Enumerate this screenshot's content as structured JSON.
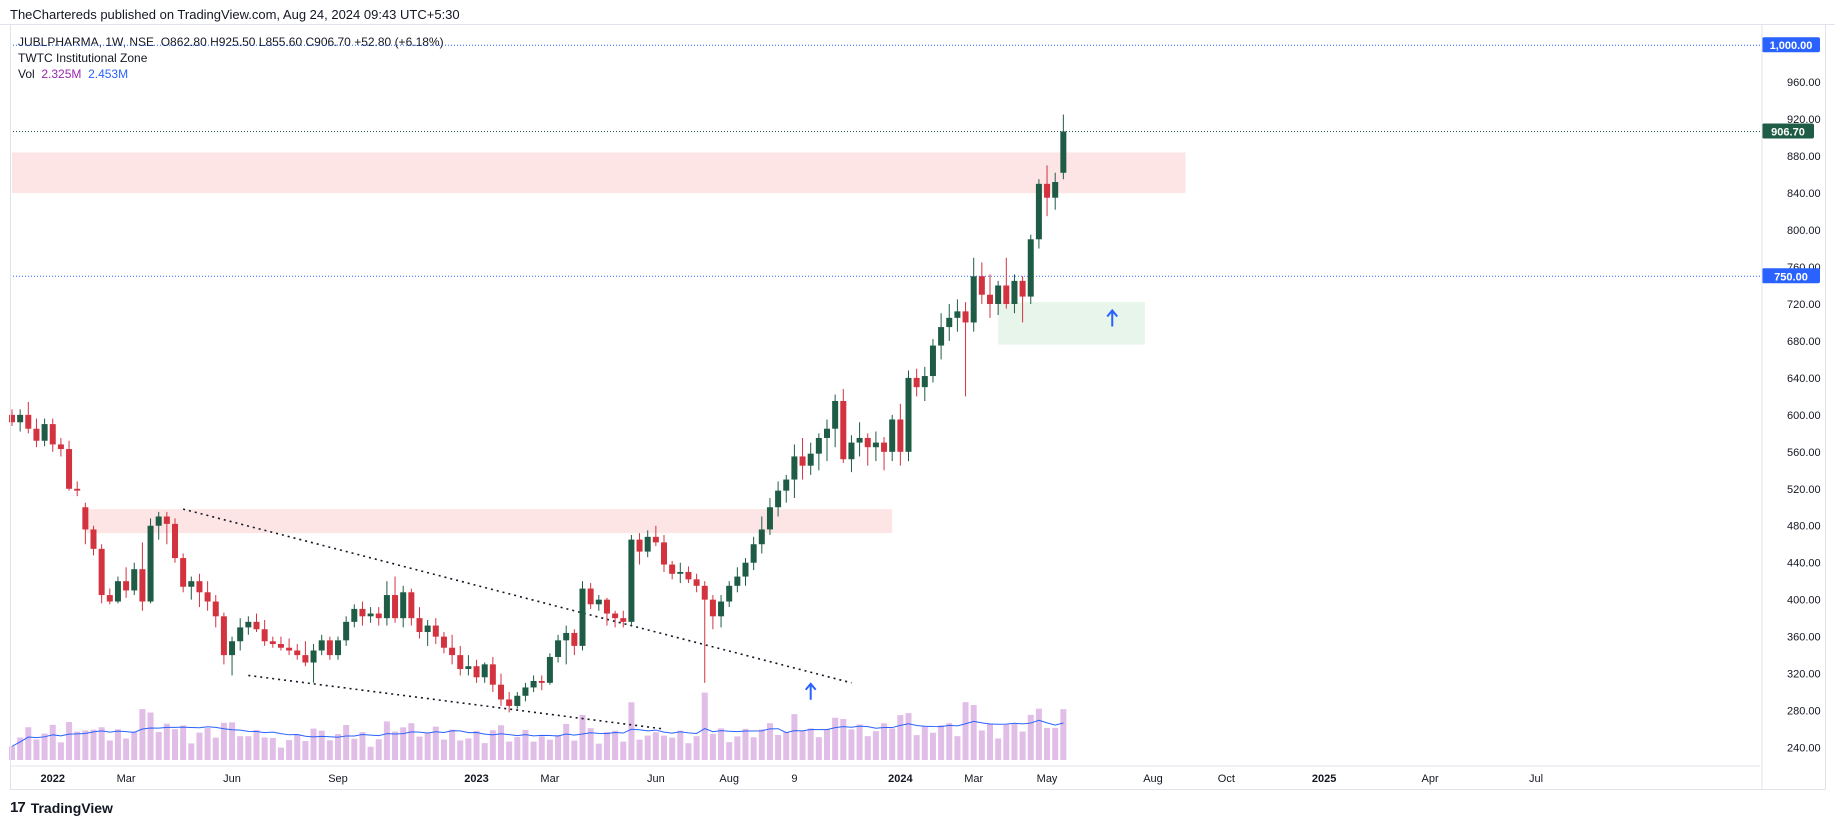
{
  "header": {
    "published": "TheChartereds published on TradingView.com, Aug 24, 2024 09:43 UTC+5:30"
  },
  "legend": {
    "symbol_line": "JUBLPHARMA, 1W, NSE",
    "ohlc": "O862.80  H925.50  L855.60  C906.70  +52.80 (+6.18%)",
    "indicator": "TWTC Institutional Zone",
    "vol_label": "Vol",
    "vol_value1": "2.325M",
    "vol_value2": "2.453M"
  },
  "footer": {
    "brand": "TradingView",
    "logo_text": "17"
  },
  "colors": {
    "up": "#1e5c45",
    "down": "#d3323f",
    "volume": "#e1bee7",
    "volume_ma": "#2962ff",
    "supply_zone": "#fde2e2",
    "demand_zone": "#e6f4e8",
    "price_badge": "#1e5c45",
    "level_badge": "#2962ff",
    "arrow": "#2962ff"
  },
  "chart_data": {
    "type": "candlestick",
    "symbol": "JUBLPHARMA",
    "interval": "1W",
    "exchange": "NSE",
    "ylim": [
      220,
      1010
    ],
    "y_ticks": [
      "240.00",
      "280.00",
      "320.00",
      "360.00",
      "400.00",
      "440.00",
      "480.00",
      "520.00",
      "560.00",
      "600.00",
      "640.00",
      "680.00",
      "720.00",
      "760.00",
      "800.00",
      "840.00",
      "880.00",
      "920.00",
      "960.00"
    ],
    "x_ticks": [
      {
        "label": "2022",
        "bold": true,
        "week": 5
      },
      {
        "label": "Mar",
        "bold": false,
        "week": 14
      },
      {
        "label": "Jun",
        "bold": false,
        "week": 27
      },
      {
        "label": "Sep",
        "bold": false,
        "week": 40
      },
      {
        "label": "2023",
        "bold": true,
        "week": 57
      },
      {
        "label": "Mar",
        "bold": false,
        "week": 66
      },
      {
        "label": "Jun",
        "bold": false,
        "week": 79
      },
      {
        "label": "Aug",
        "bold": false,
        "week": 88
      },
      {
        "label": "9",
        "bold": false,
        "week": 96
      },
      {
        "label": "2024",
        "bold": true,
        "week": 109
      },
      {
        "label": "Mar",
        "bold": false,
        "week": 118
      },
      {
        "label": "May",
        "bold": false,
        "week": 127
      },
      {
        "label": "Aug",
        "bold": false,
        "week": 140
      },
      {
        "label": "Oct",
        "bold": false,
        "week": 149
      },
      {
        "label": "2025",
        "bold": true,
        "week": 161
      },
      {
        "label": "Apr",
        "bold": false,
        "week": 174
      },
      {
        "label": "Jul",
        "bold": false,
        "week": 187
      }
    ],
    "last_price": "906.70",
    "last_price_value": 906.7,
    "levels": [
      {
        "value": 1000,
        "label": "1,000.00"
      },
      {
        "value": 750,
        "label": "750.00"
      }
    ],
    "zones": [
      {
        "kind": "supply",
        "x_from": 9,
        "x_to": 108,
        "y_from": 472,
        "y_to": 498
      },
      {
        "kind": "supply",
        "x_from": 0,
        "x_to": 144,
        "y_from": 840,
        "y_to": 884
      },
      {
        "kind": "demand",
        "x_from": 121,
        "x_to": 139,
        "y_from": 676,
        "y_to": 722
      }
    ],
    "trendlines": [
      {
        "x1": 21,
        "y1": 498,
        "x2": 103,
        "y2": 310
      },
      {
        "x1": 29,
        "y1": 318,
        "x2": 80,
        "y2": 260
      }
    ],
    "arrows": [
      {
        "x": 98,
        "y": 296
      },
      {
        "x": 135,
        "y": 700
      }
    ],
    "candles": [
      [
        600,
        606,
        588,
        592
      ],
      [
        592,
        606,
        582,
        600
      ],
      [
        600,
        614,
        580,
        585
      ],
      [
        585,
        596,
        565,
        572
      ],
      [
        572,
        596,
        566,
        590
      ],
      [
        590,
        596,
        560,
        568
      ],
      [
        568,
        575,
        555,
        563
      ],
      [
        563,
        572,
        518,
        520
      ],
      [
        520,
        528,
        512,
        518
      ],
      [
        500,
        505,
        460,
        476
      ],
      [
        476,
        480,
        448,
        455
      ],
      [
        455,
        460,
        396,
        405
      ],
      [
        405,
        412,
        395,
        398
      ],
      [
        398,
        425,
        396,
        420
      ],
      [
        420,
        435,
        402,
        410
      ],
      [
        410,
        440,
        405,
        433
      ],
      [
        433,
        462,
        388,
        398
      ],
      [
        398,
        488,
        396,
        480
      ],
      [
        480,
        495,
        465,
        490
      ],
      [
        490,
        495,
        460,
        482
      ],
      [
        482,
        488,
        440,
        445
      ],
      [
        445,
        450,
        408,
        414
      ],
      [
        414,
        425,
        400,
        420
      ],
      [
        420,
        428,
        392,
        408
      ],
      [
        408,
        420,
        388,
        398
      ],
      [
        398,
        405,
        370,
        382
      ],
      [
        382,
        386,
        330,
        340
      ],
      [
        340,
        360,
        318,
        355
      ],
      [
        355,
        380,
        345,
        370
      ],
      [
        370,
        382,
        362,
        376
      ],
      [
        376,
        385,
        365,
        368
      ],
      [
        368,
        378,
        350,
        355
      ],
      [
        355,
        360,
        348,
        352
      ],
      [
        352,
        360,
        345,
        348
      ],
      [
        348,
        358,
        340,
        345
      ],
      [
        345,
        352,
        335,
        340
      ],
      [
        340,
        355,
        328,
        332
      ],
      [
        332,
        352,
        310,
        345
      ],
      [
        345,
        362,
        340,
        356
      ],
      [
        356,
        360,
        335,
        340
      ],
      [
        340,
        360,
        335,
        356
      ],
      [
        356,
        382,
        350,
        376
      ],
      [
        376,
        395,
        370,
        390
      ],
      [
        390,
        398,
        372,
        382
      ],
      [
        382,
        392,
        375,
        385
      ],
      [
        385,
        392,
        372,
        380
      ],
      [
        380,
        420,
        372,
        405
      ],
      [
        405,
        425,
        375,
        380
      ],
      [
        380,
        415,
        370,
        408
      ],
      [
        408,
        412,
        372,
        380
      ],
      [
        380,
        392,
        358,
        365
      ],
      [
        365,
        378,
        350,
        372
      ],
      [
        372,
        380,
        352,
        360
      ],
      [
        360,
        365,
        342,
        348
      ],
      [
        348,
        362,
        330,
        340
      ],
      [
        340,
        350,
        318,
        325
      ],
      [
        325,
        340,
        318,
        328
      ],
      [
        328,
        335,
        310,
        316
      ],
      [
        316,
        332,
        310,
        330
      ],
      [
        330,
        338,
        300,
        308
      ],
      [
        308,
        320,
        285,
        292
      ],
      [
        292,
        300,
        278,
        285
      ],
      [
        285,
        300,
        282,
        296
      ],
      [
        296,
        310,
        290,
        305
      ],
      [
        305,
        318,
        300,
        312
      ],
      [
        312,
        318,
        302,
        310
      ],
      [
        310,
        342,
        308,
        338
      ],
      [
        338,
        362,
        332,
        356
      ],
      [
        356,
        372,
        330,
        364
      ],
      [
        364,
        368,
        340,
        350
      ],
      [
        350,
        420,
        345,
        412
      ],
      [
        412,
        418,
        390,
        395
      ],
      [
        395,
        405,
        388,
        400
      ],
      [
        400,
        402,
        372,
        385
      ],
      [
        385,
        388,
        370,
        380
      ],
      [
        380,
        388,
        370,
        376
      ],
      [
        376,
        470,
        372,
        465
      ],
      [
        465,
        472,
        438,
        452
      ],
      [
        452,
        475,
        446,
        468
      ],
      [
        468,
        480,
        458,
        462
      ],
      [
        462,
        470,
        430,
        438
      ],
      [
        438,
        442,
        422,
        428
      ],
      [
        428,
        440,
        418,
        430
      ],
      [
        430,
        436,
        418,
        422
      ],
      [
        422,
        428,
        408,
        415
      ],
      [
        415,
        420,
        310,
        400
      ],
      [
        400,
        405,
        368,
        382
      ],
      [
        382,
        405,
        370,
        398
      ],
      [
        398,
        420,
        392,
        415
      ],
      [
        415,
        435,
        408,
        425
      ],
      [
        425,
        445,
        415,
        440
      ],
      [
        440,
        468,
        432,
        460
      ],
      [
        460,
        490,
        450,
        476
      ],
      [
        476,
        510,
        470,
        500
      ],
      [
        500,
        528,
        490,
        518
      ],
      [
        518,
        535,
        505,
        530
      ],
      [
        530,
        568,
        510,
        555
      ],
      [
        555,
        575,
        530,
        545
      ],
      [
        545,
        570,
        535,
        558
      ],
      [
        558,
        580,
        540,
        575
      ],
      [
        575,
        595,
        550,
        585
      ],
      [
        585,
        622,
        565,
        615
      ],
      [
        615,
        628,
        548,
        552
      ],
      [
        552,
        578,
        538,
        570
      ],
      [
        570,
        592,
        555,
        575
      ],
      [
        575,
        580,
        545,
        565
      ],
      [
        565,
        582,
        550,
        570
      ],
      [
        570,
        576,
        540,
        560
      ],
      [
        560,
        600,
        550,
        595
      ],
      [
        595,
        612,
        545,
        560
      ],
      [
        560,
        648,
        550,
        640
      ],
      [
        640,
        650,
        620,
        630
      ],
      [
        630,
        652,
        615,
        642
      ],
      [
        642,
        682,
        635,
        675
      ],
      [
        675,
        710,
        660,
        695
      ],
      [
        695,
        720,
        680,
        705
      ],
      [
        705,
        725,
        690,
        712
      ],
      [
        712,
        722,
        620,
        700
      ],
      [
        700,
        770,
        690,
        750
      ],
      [
        750,
        765,
        720,
        730
      ],
      [
        730,
        752,
        705,
        720
      ],
      [
        720,
        745,
        708,
        740
      ],
      [
        740,
        770,
        715,
        720
      ],
      [
        720,
        752,
        710,
        745
      ],
      [
        745,
        750,
        700,
        728
      ],
      [
        728,
        795,
        720,
        790
      ],
      [
        790,
        855,
        780,
        850
      ],
      [
        850,
        870,
        815,
        835
      ],
      [
        835,
        862,
        822,
        852
      ],
      [
        862,
        925,
        855,
        906.7
      ]
    ],
    "volume_max_value": 4.5
  }
}
